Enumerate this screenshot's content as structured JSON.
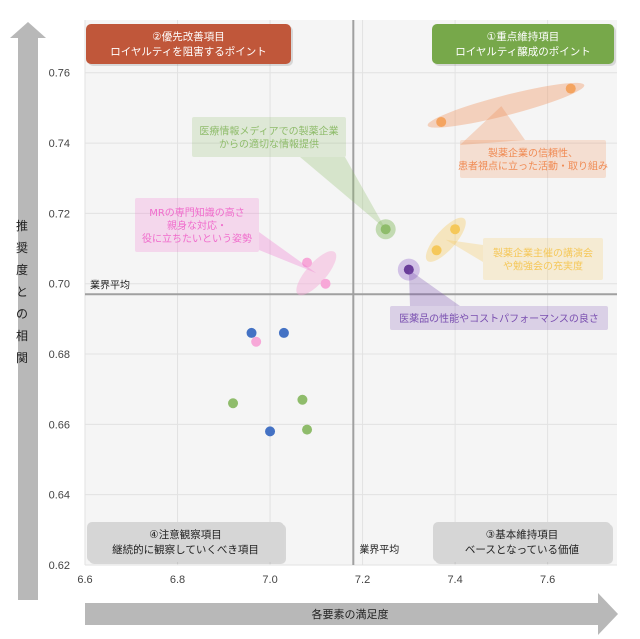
{
  "chart_data": {
    "type": "scatter",
    "xlabel": "各要素の満足度",
    "ylabel": "推奨度との相関",
    "xlim": [
      6.6,
      7.75
    ],
    "ylim": [
      0.62,
      0.775
    ],
    "xticks": [
      "6.6",
      "6.8",
      "7.0",
      "7.2",
      "7.4",
      "7.6"
    ],
    "yticks": [
      "0.62",
      "0.64",
      "0.66",
      "0.68",
      "0.70",
      "0.72",
      "0.74",
      "0.76"
    ],
    "x_average": 7.18,
    "y_average": 0.697,
    "average_label": "業界平均",
    "grid": true,
    "quadrants": {
      "q1": {
        "line1": "①重点維持項目",
        "line2": "ロイヤルティ醸成のポイント",
        "color": "#77a84a",
        "position": "top-right"
      },
      "q2": {
        "line1": "②優先改善項目",
        "line2": "ロイヤルティを阻害するポイント",
        "color": "#c0573a",
        "position": "top-left"
      },
      "q3": {
        "line1": "③基本維持項目",
        "line2": "ベースとなっている価値",
        "color": "#d6d6d6",
        "position": "bottom-right"
      },
      "q4": {
        "line1": "④注意観察項目",
        "line2": "継続的に観察していくべき項目",
        "color": "#d6d6d6",
        "position": "bottom-left"
      }
    },
    "points": [
      {
        "x": 7.65,
        "y": 0.7555,
        "color": "#f4a460"
      },
      {
        "x": 7.37,
        "y": 0.746,
        "color": "#f4a460"
      },
      {
        "x": 7.25,
        "y": 0.7155,
        "color": "#8fbc6b"
      },
      {
        "x": 7.4,
        "y": 0.7155,
        "color": "#f5c85a"
      },
      {
        "x": 7.36,
        "y": 0.7095,
        "color": "#f5c85a"
      },
      {
        "x": 7.3,
        "y": 0.704,
        "color": "#6a3d9a"
      },
      {
        "x": 7.08,
        "y": 0.706,
        "color": "#f7a8d8"
      },
      {
        "x": 7.12,
        "y": 0.7,
        "color": "#f7a8d8"
      },
      {
        "x": 6.96,
        "y": 0.686,
        "color": "#4472c4"
      },
      {
        "x": 7.03,
        "y": 0.686,
        "color": "#4472c4"
      },
      {
        "x": 6.97,
        "y": 0.6835,
        "color": "#f7a8d8"
      },
      {
        "x": 6.92,
        "y": 0.666,
        "color": "#8fbc6b"
      },
      {
        "x": 7.07,
        "y": 0.667,
        "color": "#8fbc6b"
      },
      {
        "x": 7.0,
        "y": 0.658,
        "color": "#4472c4"
      },
      {
        "x": 7.08,
        "y": 0.6585,
        "color": "#8fbc6b"
      }
    ],
    "callouts": [
      {
        "lines": [
          "製薬企業の信頼性、",
          "患者視点に立った活動・取り組み"
        ],
        "color": "#f08b54",
        "target": [
          7.5,
          0.7505
        ]
      },
      {
        "lines": [
          "医療情報メディアでの製薬企業",
          "からの適切な情報提供"
        ],
        "color": "#8fbc6b",
        "target": [
          7.25,
          0.7155
        ]
      },
      {
        "lines": [
          "MRの専門知識の高さ",
          "親身な対応・",
          "役に立ちたいという姿勢"
        ],
        "color": "#f06ccc",
        "target": [
          7.1,
          0.703
        ]
      },
      {
        "lines": [
          "製薬企業主催の講演会",
          "や勉強会の充実度"
        ],
        "color": "#f5c85a",
        "target": [
          7.38,
          0.7125
        ]
      },
      {
        "lines": [
          "医薬品の性能やコストパフォーマンスの良さ"
        ],
        "color": "#7a4fb0",
        "target": [
          7.3,
          0.704
        ]
      }
    ]
  }
}
